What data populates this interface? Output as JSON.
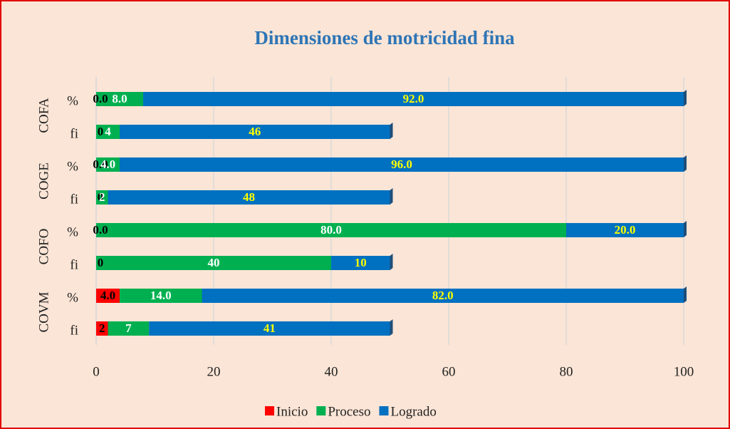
{
  "chart_data": {
    "type": "stacked-barh",
    "title": "Dimensiones de motricidad fina",
    "groups": [
      "COFA",
      "COGE",
      "COFO",
      "COVM"
    ],
    "categories": [
      "%",
      "fi",
      "%",
      "fi",
      "%",
      "fi",
      "%",
      "fi"
    ],
    "series": [
      {
        "name": "Inicio",
        "color": "#ff0000",
        "label_color": "#000000",
        "values": [
          0.0,
          0,
          0.0,
          0,
          0.0,
          0,
          4.0,
          2
        ],
        "value_labels": [
          "0.0",
          "0",
          "0.0",
          "0",
          "0.0",
          "0",
          "4.0",
          "2"
        ]
      },
      {
        "name": "Proceso",
        "color": "#00b050",
        "label_color": "#ffffff",
        "values": [
          8.0,
          4,
          4.0,
          2,
          80.0,
          40,
          14.0,
          7
        ],
        "value_labels": [
          "8.0",
          "4",
          "4.0",
          "2",
          "80.0",
          "40",
          "14.0",
          "7"
        ]
      },
      {
        "name": "Logrado",
        "color": "#0070c0",
        "label_color": "#ffff00",
        "values": [
          92.0,
          46,
          96.0,
          48,
          20.0,
          10,
          82.0,
          41
        ],
        "value_labels": [
          "92.0",
          "46",
          "96.0",
          "48",
          "20.0",
          "10",
          "82.0",
          "41"
        ]
      }
    ],
    "xlim": [
      0,
      100
    ],
    "xticks": [
      0,
      20,
      40,
      60,
      80,
      100
    ],
    "grid": true,
    "legend": "bottom"
  }
}
